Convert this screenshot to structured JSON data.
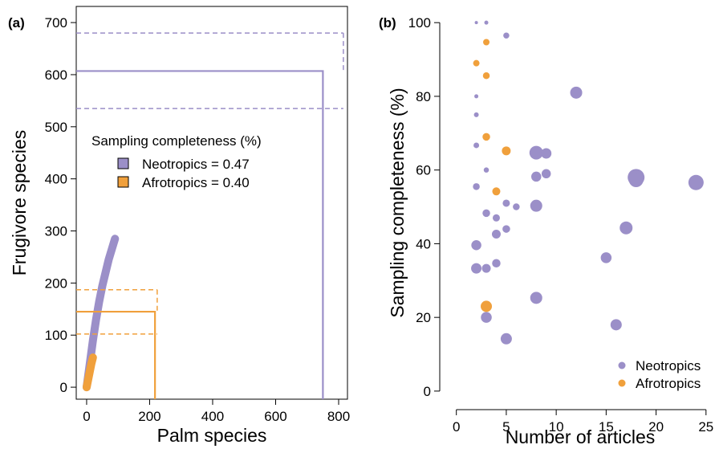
{
  "chart_data": [
    {
      "type": "line",
      "panel_label": "(a)",
      "xlabel": "Palm species",
      "ylabel": "Frugivore species",
      "xlim": [
        -33,
        828
      ],
      "xticks": [
        0,
        200,
        400,
        600,
        800
      ],
      "ylim": [
        -23,
        731
      ],
      "yticks": [
        0,
        100,
        200,
        300,
        400,
        500,
        600,
        700
      ],
      "legend_title": "Sampling completeness (%)",
      "legend_loc": "center left",
      "series": [
        {
          "name": "Neotropics = 0.47",
          "color": "#9b8fc8",
          "x": [
            0,
            10,
            20,
            30,
            40,
            50,
            60,
            70,
            80,
            90
          ],
          "values": [
            0,
            45,
            90,
            130,
            165,
            195,
            220,
            245,
            265,
            285
          ],
          "estimate_x": 750,
          "estimate_x_upper": 815,
          "estimate": 607,
          "ci": [
            535,
            680
          ]
        },
        {
          "name": "Afrotropics = 0.40",
          "color": "#f0a03c",
          "x": [
            0,
            5,
            10,
            15,
            20
          ],
          "values": [
            0,
            15,
            30,
            45,
            57
          ],
          "estimate_x": 217,
          "estimate_x_upper": 224,
          "estimate": 145,
          "ci": [
            102,
            187
          ]
        }
      ]
    },
    {
      "type": "scatter",
      "panel_label": "(b)",
      "xlabel": "Number of articles",
      "ylabel": "Sampling completeness (%)",
      "xlim": [
        -1.1,
        25.9
      ],
      "xticks": [
        0,
        5,
        10,
        15,
        20,
        25
      ],
      "ylim": [
        -2.2,
        104.4
      ],
      "yticks": [
        0,
        20,
        40,
        60,
        80,
        100
      ],
      "legend_loc": "lower right",
      "series": [
        {
          "name": "Neotropics",
          "color": "#9b8fc8",
          "x": [
            2,
            3,
            5,
            2,
            2,
            2,
            3,
            2,
            3,
            4,
            5,
            6,
            4,
            5,
            2,
            2,
            3,
            4,
            8,
            9,
            8,
            9,
            8,
            12,
            18,
            18,
            24,
            17,
            15,
            8,
            3,
            16,
            5
          ],
          "values": [
            100,
            100,
            96.5,
            80,
            75,
            66.7,
            60,
            55.5,
            48.3,
            47,
            51,
            50,
            42.6,
            44,
            39.6,
            33.3,
            33.3,
            34.7,
            64.7,
            64.5,
            58.2,
            59,
            50.3,
            81,
            58,
            57.3,
            56.6,
            44.3,
            36.2,
            25.3,
            20,
            18,
            14.2
          ],
          "sizes": [
            0.8,
            1,
            1.5,
            1,
            1.2,
            1.4,
            1.3,
            1.7,
            1.9,
            1.8,
            1.8,
            1.7,
            2.2,
            1.9,
            2.5,
            2.6,
            2.2,
            2.1,
            3.4,
            2.6,
            2.5,
            2.3,
            3,
            3,
            4.2,
            3.6,
            3.8,
            3.2,
            2.7,
            3,
            2.7,
            2.8,
            2.8
          ]
        },
        {
          "name": "Afrotropics",
          "color": "#f0a03c",
          "x": [
            3,
            2,
            3,
            3,
            5,
            4,
            3
          ],
          "values": [
            94.7,
            89,
            85.6,
            69,
            65.2,
            54.2,
            23
          ],
          "sizes": [
            1.6,
            1.6,
            1.7,
            1.9,
            2.2,
            2,
            2.8
          ]
        }
      ]
    }
  ]
}
